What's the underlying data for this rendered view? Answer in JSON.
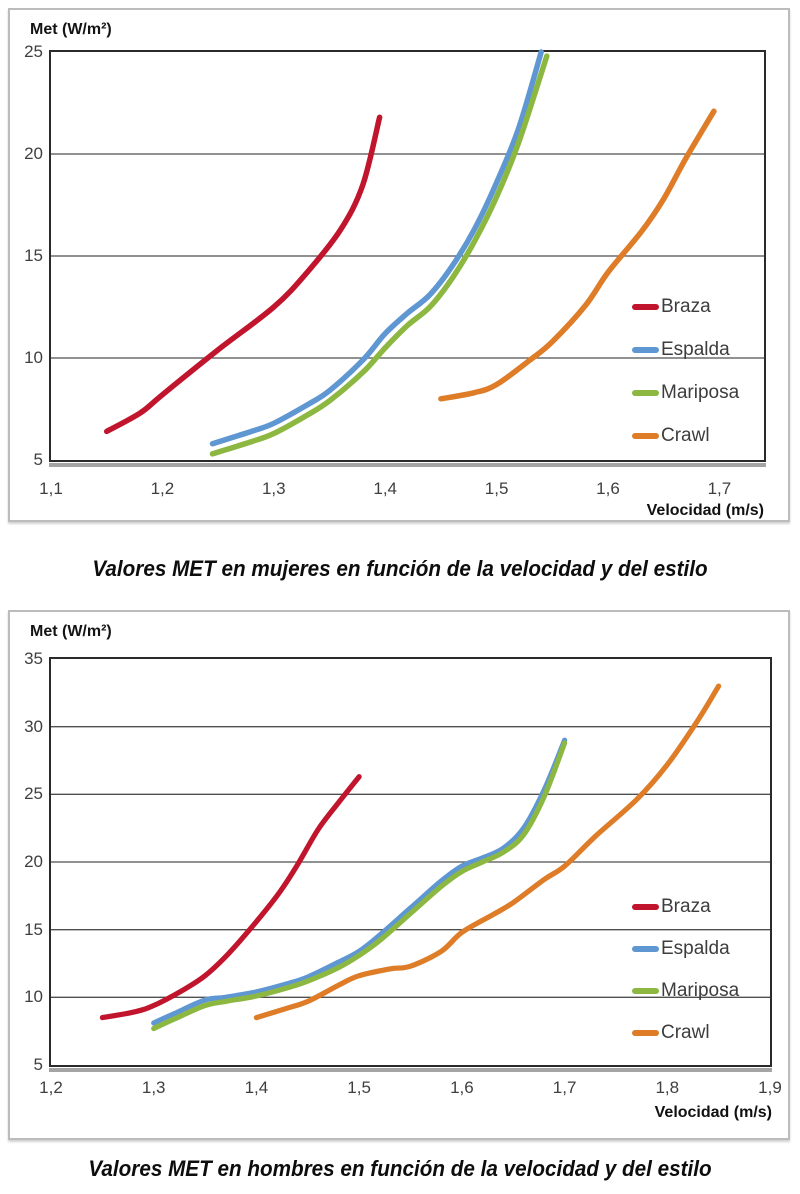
{
  "chart_data": [
    {
      "type": "line",
      "caption": "Valores MET en mujeres en función de la velocidad y del estilo",
      "y_axis_label": "Met (W/m²)",
      "x_axis_label": "Velocidad (m/s)",
      "xlim": [
        1.1,
        1.74
      ],
      "ylim": [
        5,
        25
      ],
      "grid": "horizontal-only",
      "legend_position": "right-inside",
      "x_ticks": [
        {
          "v": 1.1,
          "label": "1,1"
        },
        {
          "v": 1.2,
          "label": "1,2"
        },
        {
          "v": 1.3,
          "label": "1,3"
        },
        {
          "v": 1.4,
          "label": "1,4"
        },
        {
          "v": 1.5,
          "label": "1,5"
        },
        {
          "v": 1.6,
          "label": "1,6"
        },
        {
          "v": 1.7,
          "label": "1,7"
        }
      ],
      "y_ticks": [
        {
          "v": 25,
          "label": "25"
        },
        {
          "v": 20,
          "label": "20"
        },
        {
          "v": 15,
          "label": "15"
        },
        {
          "v": 10,
          "label": "10"
        },
        {
          "v": 5,
          "label": "5"
        }
      ],
      "series": [
        {
          "name": "Braza",
          "color": "#C0152C",
          "points": [
            [
              1.15,
              6.4
            ],
            [
              1.18,
              7.3
            ],
            [
              1.2,
              8.2
            ],
            [
              1.25,
              10.4
            ],
            [
              1.3,
              12.5
            ],
            [
              1.33,
              14.2
            ],
            [
              1.36,
              16.3
            ],
            [
              1.38,
              18.5
            ],
            [
              1.395,
              21.8
            ]
          ]
        },
        {
          "name": "Espalda",
          "color": "#5F97D2",
          "points": [
            [
              1.245,
              5.8
            ],
            [
              1.28,
              6.4
            ],
            [
              1.3,
              6.8
            ],
            [
              1.33,
              7.7
            ],
            [
              1.35,
              8.4
            ],
            [
              1.38,
              9.9
            ],
            [
              1.4,
              11.2
            ],
            [
              1.42,
              12.2
            ],
            [
              1.44,
              13.1
            ],
            [
              1.46,
              14.5
            ],
            [
              1.48,
              16.3
            ],
            [
              1.5,
              18.6
            ],
            [
              1.52,
              21.3
            ],
            [
              1.54,
              25.0
            ]
          ]
        },
        {
          "name": "Mariposa",
          "color": "#8CB842",
          "points": [
            [
              1.245,
              5.3
            ],
            [
              1.28,
              5.9
            ],
            [
              1.3,
              6.3
            ],
            [
              1.33,
              7.2
            ],
            [
              1.35,
              7.9
            ],
            [
              1.38,
              9.3
            ],
            [
              1.4,
              10.5
            ],
            [
              1.42,
              11.6
            ],
            [
              1.44,
              12.5
            ],
            [
              1.46,
              13.9
            ],
            [
              1.48,
              15.7
            ],
            [
              1.5,
              17.9
            ],
            [
              1.52,
              20.6
            ],
            [
              1.545,
              24.8
            ]
          ]
        },
        {
          "name": "Crawl",
          "color": "#DE7C28",
          "points": [
            [
              1.45,
              8.0
            ],
            [
              1.48,
              8.3
            ],
            [
              1.5,
              8.7
            ],
            [
              1.53,
              9.9
            ],
            [
              1.55,
              10.8
            ],
            [
              1.58,
              12.6
            ],
            [
              1.6,
              14.2
            ],
            [
              1.63,
              16.2
            ],
            [
              1.65,
              17.8
            ],
            [
              1.67,
              19.8
            ],
            [
              1.695,
              22.1
            ]
          ]
        }
      ]
    },
    {
      "type": "line",
      "caption": "Valores MET en hombres en función de la velocidad y del estilo",
      "y_axis_label": "Met (W/m²)",
      "x_axis_label": "Velocidad (m/s)",
      "xlim": [
        1.2,
        1.9
      ],
      "ylim": [
        5,
        35
      ],
      "grid": "horizontal-only",
      "legend_position": "right-inside",
      "x_ticks": [
        {
          "v": 1.2,
          "label": "1,2"
        },
        {
          "v": 1.3,
          "label": "1,3"
        },
        {
          "v": 1.4,
          "label": "1,4"
        },
        {
          "v": 1.5,
          "label": "1,5"
        },
        {
          "v": 1.6,
          "label": "1,6"
        },
        {
          "v": 1.7,
          "label": "1,7"
        },
        {
          "v": 1.8,
          "label": "1,8"
        },
        {
          "v": 1.9,
          "label": "1,9"
        }
      ],
      "y_ticks": [
        {
          "v": 35,
          "label": "35"
        },
        {
          "v": 30,
          "label": "30"
        },
        {
          "v": 25,
          "label": "25"
        },
        {
          "v": 20,
          "label": "20"
        },
        {
          "v": 15,
          "label": "15"
        },
        {
          "v": 10,
          "label": "10"
        },
        {
          "v": 5,
          "label": "5"
        }
      ],
      "series": [
        {
          "name": "Braza",
          "color": "#C0152C",
          "points": [
            [
              1.25,
              8.5
            ],
            [
              1.28,
              8.9
            ],
            [
              1.3,
              9.4
            ],
            [
              1.33,
              10.6
            ],
            [
              1.35,
              11.6
            ],
            [
              1.37,
              13.0
            ],
            [
              1.39,
              14.7
            ],
            [
              1.42,
              17.5
            ],
            [
              1.44,
              19.8
            ],
            [
              1.46,
              22.4
            ],
            [
              1.48,
              24.4
            ],
            [
              1.5,
              26.3
            ]
          ]
        },
        {
          "name": "Espalda",
          "color": "#5F97D2",
          "points": [
            [
              1.3,
              8.1
            ],
            [
              1.32,
              8.8
            ],
            [
              1.35,
              9.8
            ],
            [
              1.37,
              10.0
            ],
            [
              1.4,
              10.4
            ],
            [
              1.43,
              11.0
            ],
            [
              1.45,
              11.5
            ],
            [
              1.48,
              12.6
            ],
            [
              1.5,
              13.4
            ],
            [
              1.52,
              14.6
            ],
            [
              1.55,
              16.6
            ],
            [
              1.58,
              18.6
            ],
            [
              1.6,
              19.7
            ],
            [
              1.62,
              20.3
            ],
            [
              1.64,
              21.0
            ],
            [
              1.66,
              22.5
            ],
            [
              1.68,
              25.3
            ],
            [
              1.7,
              29.0
            ]
          ]
        },
        {
          "name": "Mariposa",
          "color": "#8CB842",
          "points": [
            [
              1.3,
              7.7
            ],
            [
              1.32,
              8.4
            ],
            [
              1.35,
              9.4
            ],
            [
              1.37,
              9.7
            ],
            [
              1.4,
              10.1
            ],
            [
              1.43,
              10.7
            ],
            [
              1.45,
              11.2
            ],
            [
              1.48,
              12.2
            ],
            [
              1.5,
              13.1
            ],
            [
              1.52,
              14.2
            ],
            [
              1.55,
              16.2
            ],
            [
              1.58,
              18.2
            ],
            [
              1.6,
              19.3
            ],
            [
              1.62,
              20.0
            ],
            [
              1.64,
              20.7
            ],
            [
              1.66,
              22.0
            ],
            [
              1.68,
              24.8
            ],
            [
              1.7,
              28.8
            ]
          ]
        },
        {
          "name": "Crawl",
          "color": "#DE7C28",
          "points": [
            [
              1.4,
              8.5
            ],
            [
              1.43,
              9.2
            ],
            [
              1.45,
              9.7
            ],
            [
              1.48,
              10.9
            ],
            [
              1.5,
              11.6
            ],
            [
              1.53,
              12.1
            ],
            [
              1.55,
              12.3
            ],
            [
              1.58,
              13.4
            ],
            [
              1.6,
              14.8
            ],
            [
              1.63,
              16.1
            ],
            [
              1.65,
              17.0
            ],
            [
              1.68,
              18.7
            ],
            [
              1.7,
              19.7
            ],
            [
              1.73,
              21.9
            ],
            [
              1.77,
              24.6
            ],
            [
              1.8,
              27.2
            ],
            [
              1.83,
              30.5
            ],
            [
              1.85,
              33.0
            ]
          ]
        }
      ]
    }
  ],
  "style": {
    "gridline_color": "#4f4f4f",
    "tick_text_color": "#3f3f3f",
    "plot_frame_color": "#2a2a2a"
  }
}
